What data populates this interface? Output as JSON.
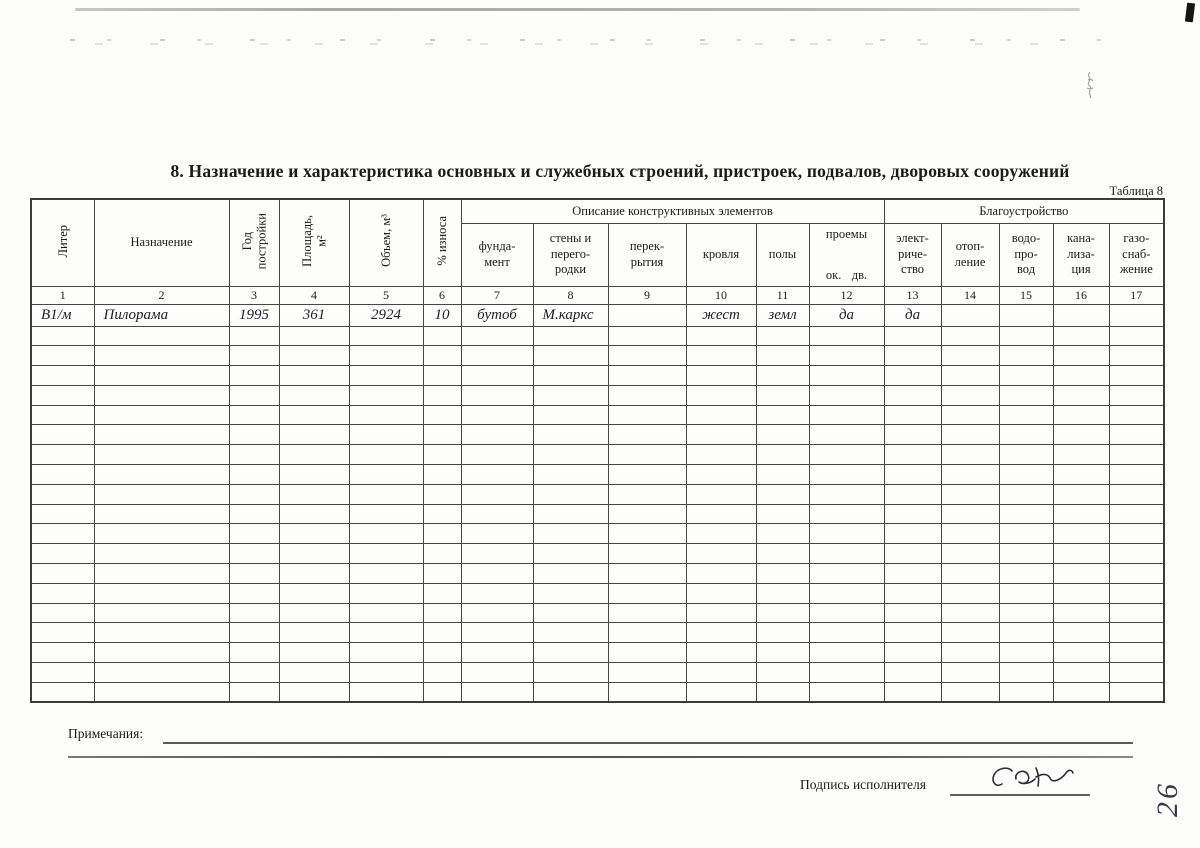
{
  "page": {
    "title": "8. Назначение и характеристика основных и служебных строений, пристроек, подвалов, дворовых сооружений",
    "table_caption": "Таблица 8",
    "notes_label": "Примечания:",
    "signature_label": "Подпись исполнителя",
    "signature_scribble": "Сск",
    "page_number_handwritten": "26"
  },
  "colors": {
    "ink": "#1b1b1b",
    "table_border": "#474747",
    "handwriting": "#3c3c47"
  },
  "table": {
    "group_headers": [
      {
        "label": "Описание конструктивных элементов"
      },
      {
        "label": "Благоустройство"
      }
    ],
    "columns": [
      {
        "num": "1",
        "label": "Литер",
        "rotated": true
      },
      {
        "num": "2",
        "label": "Назначение",
        "rotated": false
      },
      {
        "num": "3",
        "label": "Год\nпостройки",
        "rotated": true
      },
      {
        "num": "4",
        "label": "Площадь,\nм²",
        "rotated": true
      },
      {
        "num": "5",
        "label": "Объем, м³",
        "rotated": true
      },
      {
        "num": "6",
        "label": "% износа",
        "rotated": true
      },
      {
        "num": "7",
        "label": "фунда-\nмент"
      },
      {
        "num": "8",
        "label": "стены и\nперего-\nродки"
      },
      {
        "num": "9",
        "label": "перек-\nрытия"
      },
      {
        "num": "10",
        "label": "кровля"
      },
      {
        "num": "11",
        "label": "полы"
      },
      {
        "num": "12",
        "label": "проемы",
        "sub_left": "ок.",
        "sub_right": "дв."
      },
      {
        "num": "13",
        "label": "элект-\nриче-\nство"
      },
      {
        "num": "14",
        "label": "отоп-\nление"
      },
      {
        "num": "15",
        "label": "водо-\nпро-\nвод"
      },
      {
        "num": "16",
        "label": "кана-\nлиза-\nция"
      },
      {
        "num": "17",
        "label": "газо-\nснаб-\nжение"
      }
    ],
    "rows": [
      {
        "cells": [
          "В1/м",
          "Пилорама",
          "1995",
          "361",
          "2924",
          "10",
          "бутоб",
          "М.каркс",
          "",
          "жест",
          "земл",
          "да",
          "да",
          "",
          "",
          "",
          ""
        ]
      }
    ],
    "empty_row_count": 19
  }
}
